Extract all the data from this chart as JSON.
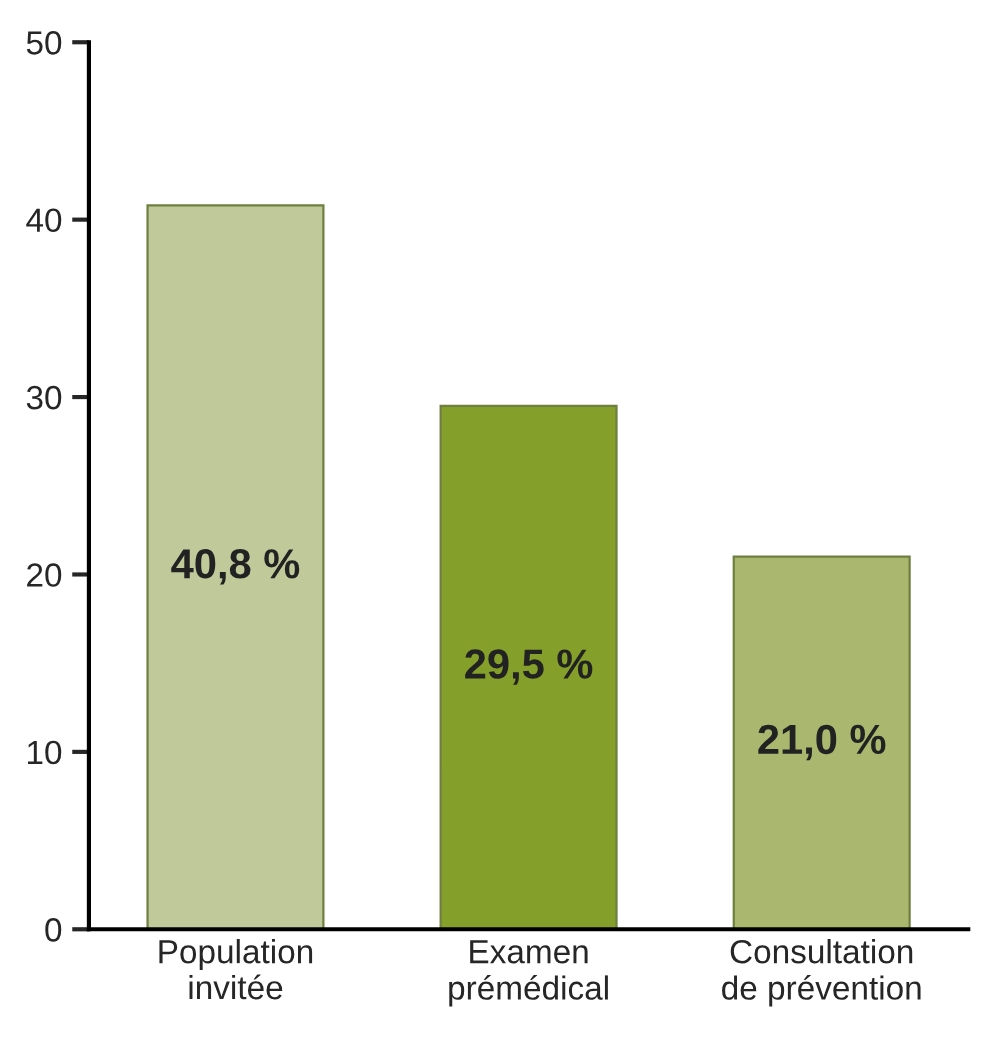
{
  "chart_data": {
    "type": "bar",
    "categories": [
      "Population\ninvitée",
      "Examen\nprémédical",
      "Consultation\nde prévention"
    ],
    "values": [
      40.8,
      29.5,
      21.0
    ],
    "colors": [
      "#bfc99a",
      "#85a02a",
      "#a9b86e"
    ],
    "value_labels": [
      "40,8 %",
      "29,5 %",
      "21,0 %"
    ],
    "ylim": [
      0,
      50
    ],
    "yticks": [
      0,
      10,
      20,
      30,
      40,
      50
    ],
    "grid": false,
    "legend": false
  }
}
